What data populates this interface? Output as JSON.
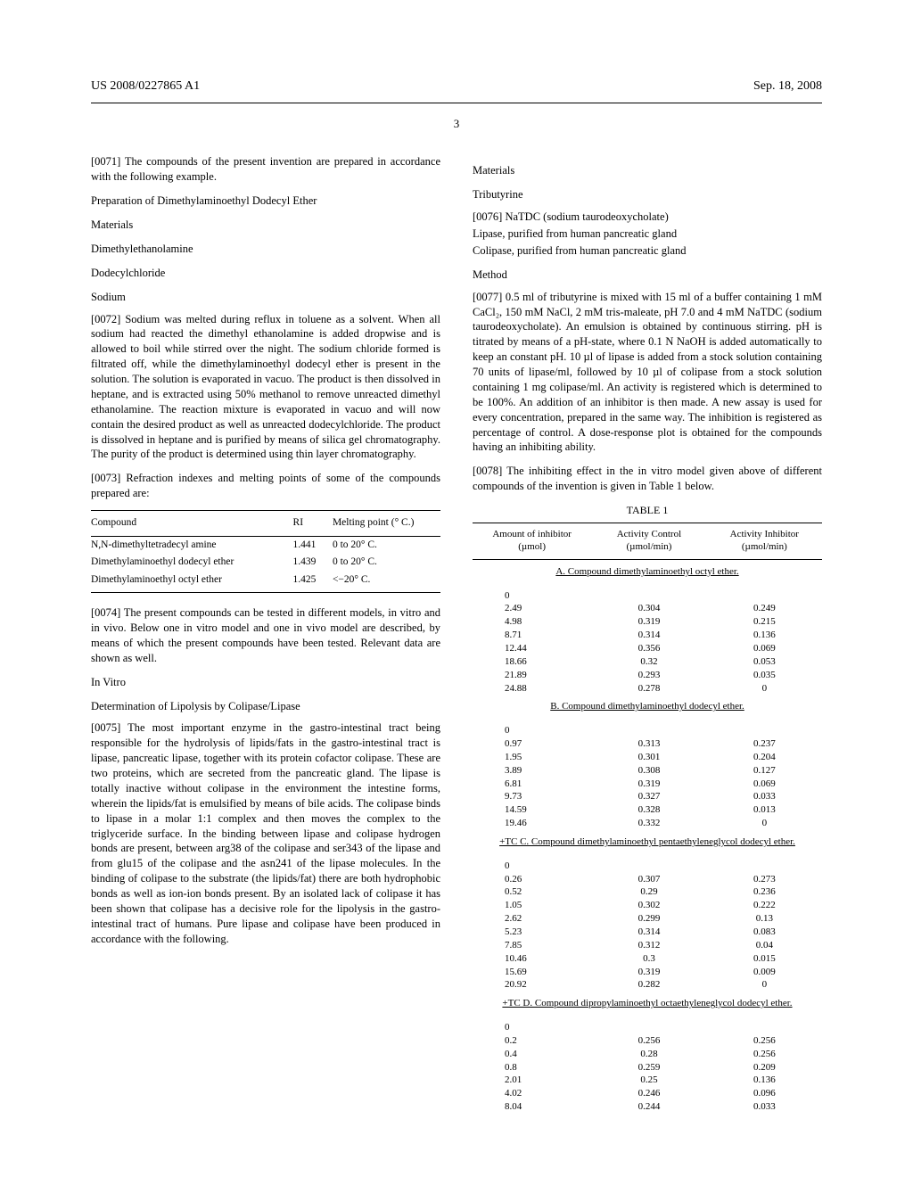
{
  "header": {
    "left": "US 2008/0227865 A1",
    "right": "Sep. 18, 2008",
    "page": "3"
  },
  "left_col": {
    "p0071": "[0071]    The compounds of the present invention are prepared in accordance with the following example.",
    "prep_title": "Preparation of Dimethylaminoethyl Dodecyl Ether",
    "materials_label": "Materials",
    "mat1": "Dimethylethanolamine",
    "mat2": "Dodecylchloride",
    "mat3": "Sodium",
    "p0072": "[0072]    Sodium was melted during reflux in toluene as a solvent. When all sodium had reacted the dimethyl ethanolamine is added dropwise and is allowed to boil while stirred over the night. The sodium chloride formed is filtrated off, while the dimethylaminoethyl dodecyl ether is present in the solution. The solution is evaporated in vacuo. The product is then dissolved in heptane, and is extracted using 50% methanol to remove unreacted dimethyl ethanolamine. The reaction mixture is evaporated in vacuo and will now contain the desired product as well as unreacted dodecylchloride. The product is dissolved in heptane and is purified by means of silica gel chromatography. The purity of the product is determined using thin layer chromatography.",
    "p0073": "[0073]    Refraction indexes and melting points of some of the compounds prepared are:",
    "compounds": {
      "headers": [
        "Compound",
        "RI",
        "Melting point (° C.)"
      ],
      "rows": [
        [
          "N,N-dimethyltetradecyl amine",
          "1.441",
          "0 to 20° C."
        ],
        [
          "Dimethylaminoethyl dodecyl ether",
          "1.439",
          "0 to 20° C."
        ],
        [
          "Dimethylaminoethyl octyl ether",
          "1.425",
          "<−20° C."
        ]
      ]
    },
    "p0074": "[0074]    The present compounds can be tested in different models, in vitro and in vivo. Below one in vitro model and one in vivo model are described, by means of which the present compounds have been tested. Relevant data are shown as well.",
    "invitro_label": "In Vitro",
    "lipolysis_label": "Determination of Lipolysis by Colipase/Lipase",
    "p0075": "[0075]    The most important enzyme in the gastro-intestinal tract being responsible for the hydrolysis of lipids/fats in the gastro-intestinal tract is lipase, pancreatic lipase, together with its protein cofactor colipase. These are two proteins, which are secreted from the pancreatic gland. The lipase is totally inactive without colipase in the environment the intestine forms, wherein the lipids/fat is emulsified by means of bile acids. The colipase binds to lipase in a molar 1:1 complex and then moves the complex to the triglyceride surface. In the binding between lipase and colipase hydrogen bonds are present, between arg38 of the colipase and ser343 of the lipase and from glu15 of the colipase and the asn241 of the lipase molecules. In the binding of colipase to the substrate (the lipids/fat) there are both hydrophobic bonds as well as ion-ion bonds present. By an isolated lack of colipase it has been shown that colipase has a decisive role for the lipolysis in the gastro-intestinal tract of humans. Pure lipase and colipase have been produced in accordance with the following."
  },
  "right_col": {
    "materials_label": "Materials",
    "tributyrine": "Tributyrine",
    "p0076a": "[0076]    NaTDC (sodium taurodeoxycholate)",
    "p0076b": "Lipase, purified from human pancreatic gland",
    "p0076c": "Colipase, purified from human pancreatic gland",
    "method_label": "Method",
    "p0077": "[0077]    0.5 ml of tributyrine is mixed with 15 ml of a buffer containing 1 mM CaCl₂, 150 mM NaCl, 2 mM tris-maleate, pH 7.0 and 4 mM NaTDC (sodium taurodeoxycholate). An emulsion is obtained by continuous stirring. pH is titrated by means of a pH-state, where 0.1 N NaOH is added automatically to keep an constant pH. 10 µl of lipase is added from a stock solution containing 70 units of lipase/ml, followed by 10 µl of colipase from a stock solution containing 1 mg colipase/ml. An activity is registered which is determined to be 100%. An addition of an inhibitor is then made. A new assay is used for every concentration, prepared in the same way. The inhibition is registered as percentage of control. A dose-response plot is obtained for the compounds having an inhibiting ability.",
    "p0078": "[0078]    The inhibiting effect in the in vitro model given above of different compounds of the invention is given in Table 1 below."
  },
  "table1": {
    "title": "TABLE 1",
    "headers": [
      "Amount of inhibitor\n(µmol)",
      "Activity Control\n(µmol/min)",
      "Activity Inhibitor\n(µmol/min)"
    ],
    "sections": [
      {
        "label": "A. Compound dimethylaminoethyl octyl ether.",
        "rows": [
          [
            "0",
            "",
            ""
          ],
          [
            "2.49",
            "0.304",
            "0.249"
          ],
          [
            "4.98",
            "0.319",
            "0.215"
          ],
          [
            "8.71",
            "0.314",
            "0.136"
          ],
          [
            "12.44",
            "0.356",
            "0.069"
          ],
          [
            "18.66",
            "0.32",
            "0.053"
          ],
          [
            "21.89",
            "0.293",
            "0.035"
          ],
          [
            "24.88",
            "0.278",
            "0"
          ]
        ]
      },
      {
        "label": "B. Compound dimethylaminoethyl dodecyl ether.",
        "rows": [
          [
            "0",
            "",
            ""
          ],
          [
            "0.97",
            "0.313",
            "0.237"
          ],
          [
            "1.95",
            "0.301",
            "0.204"
          ],
          [
            "3.89",
            "0.308",
            "0.127"
          ],
          [
            "6.81",
            "0.319",
            "0.069"
          ],
          [
            "9.73",
            "0.327",
            "0.033"
          ],
          [
            "14.59",
            "0.328",
            "0.013"
          ],
          [
            "19.46",
            "0.332",
            "0"
          ]
        ]
      },
      {
        "label": "+TC C. Compound dimethylaminoethyl pentaethyleneglycol dodecyl ether.",
        "rows": [
          [
            "0",
            "",
            ""
          ],
          [
            "0.26",
            "0.307",
            "0.273"
          ],
          [
            "0.52",
            "0.29",
            "0.236"
          ],
          [
            "1.05",
            "0.302",
            "0.222"
          ],
          [
            "2.62",
            "0.299",
            "0.13"
          ],
          [
            "5.23",
            "0.314",
            "0.083"
          ],
          [
            "7.85",
            "0.312",
            "0.04"
          ],
          [
            "10.46",
            "0.3",
            "0.015"
          ],
          [
            "15.69",
            "0.319",
            "0.009"
          ],
          [
            "20.92",
            "0.282",
            "0"
          ]
        ]
      },
      {
        "label": "+TC D. Compound dipropylaminoethyl octaethyleneglycol dodecyl ether.",
        "rows": [
          [
            "0",
            "",
            ""
          ],
          [
            "0.2",
            "0.256",
            "0.256"
          ],
          [
            "0.4",
            "0.28",
            "0.256"
          ],
          [
            "0.8",
            "0.259",
            "0.209"
          ],
          [
            "2.01",
            "0.25",
            "0.136"
          ],
          [
            "4.02",
            "0.246",
            "0.096"
          ],
          [
            "8.04",
            "0.244",
            "0.033"
          ]
        ]
      }
    ]
  }
}
